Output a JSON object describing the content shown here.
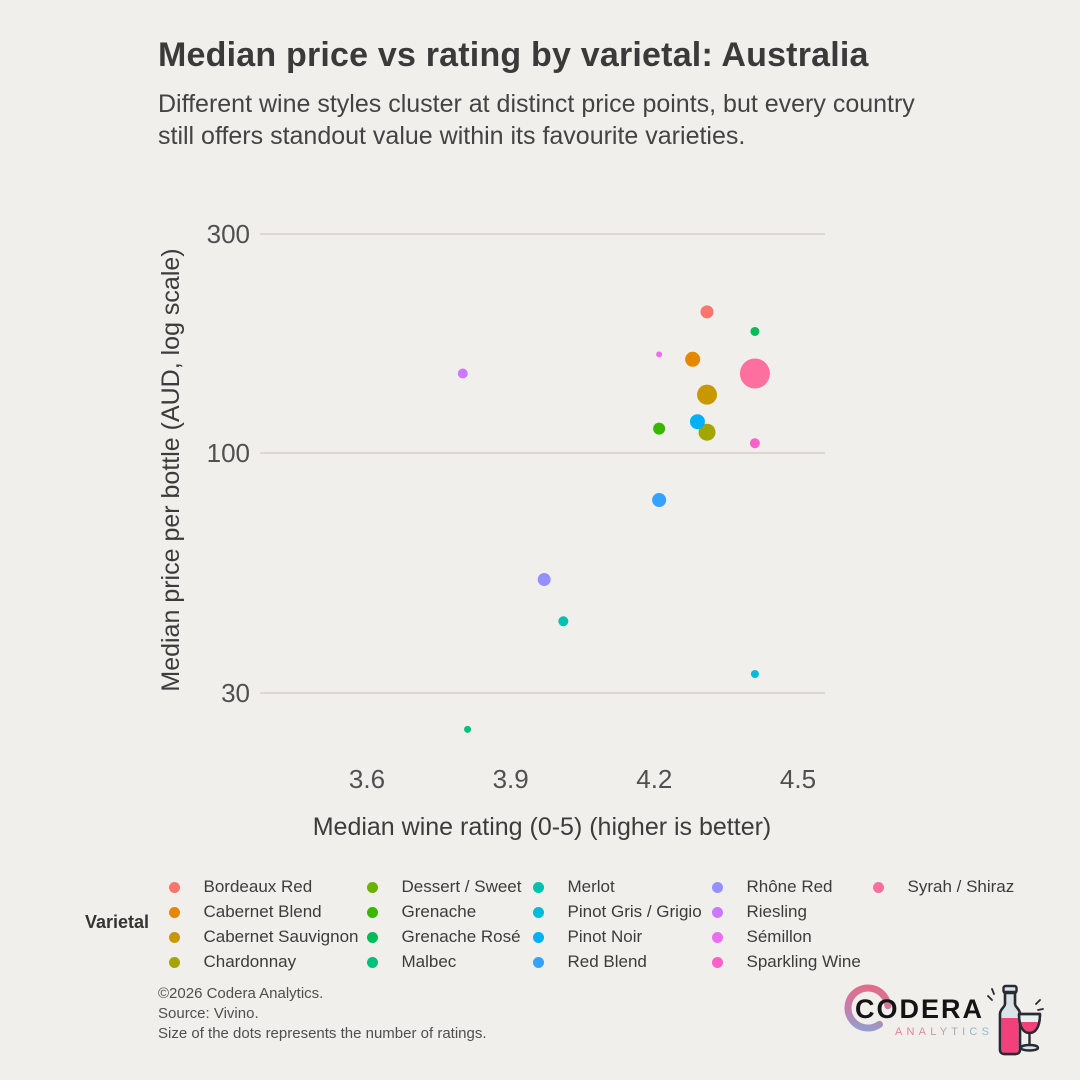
{
  "page": {
    "background": "#F0EFEC"
  },
  "header": {
    "title": "Median price vs rating by varietal: Australia",
    "subtitle_line1": "Different wine styles cluster at distinct price points, but every country",
    "subtitle_line2": "still offers standout value within its favourite varieties."
  },
  "chart_data": {
    "type": "scatter",
    "title": "Median price vs rating by varietal: Australia",
    "xlabel": "Median wine rating (0-5) (higher is better)",
    "ylabel": "Median price per bottle (AUD, log scale)",
    "x_ticks": [
      "3.6",
      "3.9",
      "4.2",
      "4.5"
    ],
    "y_ticks": [
      "30",
      "100",
      "300"
    ],
    "y_scale": "log10",
    "xlim": [
      3.38,
      4.56
    ],
    "ylim": [
      24,
      340
    ],
    "grid": "horizontal-only",
    "legend_title": "Varietal",
    "size_encoding": "dot size represents the number of ratings",
    "series": [
      {
        "varietal": "Bordeaux Red",
        "color": "#F8766D",
        "rating": 4.31,
        "price_aud": 203,
        "dot_radius_px": 6.5,
        "plotted": true
      },
      {
        "varietal": "Cabernet Blend",
        "color": "#E58700",
        "rating": 4.28,
        "price_aud": 160,
        "dot_radius_px": 7.5,
        "plotted": true
      },
      {
        "varietal": "Cabernet Sauvignon",
        "color": "#C99800",
        "rating": 4.31,
        "price_aud": 134,
        "dot_radius_px": 10,
        "plotted": true
      },
      {
        "varietal": "Chardonnay",
        "color": "#A3A500",
        "rating": 4.31,
        "price_aud": 111,
        "dot_radius_px": 8.5,
        "plotted": true
      },
      {
        "varietal": "Dessert / Sweet",
        "color": "#6BB100",
        "plotted": false
      },
      {
        "varietal": "Grenache",
        "color": "#39B600",
        "rating": 4.21,
        "price_aud": 113,
        "dot_radius_px": 6,
        "plotted": true
      },
      {
        "varietal": "Grenache Rosé",
        "color": "#00BC59",
        "rating": 4.41,
        "price_aud": 184,
        "dot_radius_px": 4.5,
        "plotted": true
      },
      {
        "varietal": "Malbec",
        "color": "#00C07D",
        "rating": 3.81,
        "price_aud": 25,
        "dot_radius_px": 3.5,
        "plotted": true
      },
      {
        "varietal": "Merlot",
        "color": "#00C0AF",
        "rating": 4.01,
        "price_aud": 43,
        "dot_radius_px": 5,
        "plotted": true
      },
      {
        "varietal": "Pinot Gris / Grigio",
        "color": "#00BCD8",
        "rating": 4.41,
        "price_aud": 33,
        "dot_radius_px": 4,
        "plotted": true
      },
      {
        "varietal": "Pinot Noir",
        "color": "#00B0F6",
        "rating": 4.29,
        "price_aud": 117,
        "dot_radius_px": 7.5,
        "plotted": true
      },
      {
        "varietal": "Red Blend",
        "color": "#35A2FF",
        "rating": 4.21,
        "price_aud": 79,
        "dot_radius_px": 7,
        "plotted": true
      },
      {
        "varietal": "Rhône Red",
        "color": "#9590FF",
        "rating": 3.97,
        "price_aud": 53,
        "dot_radius_px": 6.5,
        "plotted": true
      },
      {
        "varietal": "Riesling",
        "color": "#CC79FF",
        "rating": 3.8,
        "price_aud": 149,
        "dot_radius_px": 5,
        "plotted": true
      },
      {
        "varietal": "Sémillon",
        "color": "#EC6DF2",
        "rating": 4.21,
        "price_aud": 164,
        "dot_radius_px": 3,
        "plotted": true
      },
      {
        "varietal": "Sparkling Wine",
        "color": "#FB61CA",
        "rating": 4.41,
        "price_aud": 105,
        "dot_radius_px": 5,
        "plotted": true
      },
      {
        "varietal": "Syrah / Shiraz",
        "color": "#FC6F9F",
        "rating": 4.41,
        "price_aud": 149,
        "dot_radius_px": 15,
        "plotted": true
      }
    ]
  },
  "legend": {
    "title": "Varietal"
  },
  "footer": {
    "line1": "©2026 Codera Analytics.",
    "line2": "Source: Vivino.",
    "line3": "Size of the dots represents the number of ratings."
  },
  "logo": {
    "brand": "CODERA",
    "sub": "ANALYTICS"
  },
  "style": {
    "grid_color": "#DBD8D3",
    "tick_color": "#505050",
    "accent_pink": "#F2407A",
    "logo_gradient_from": "#E8506E",
    "logo_gradient_to": "#6E9BD8"
  }
}
